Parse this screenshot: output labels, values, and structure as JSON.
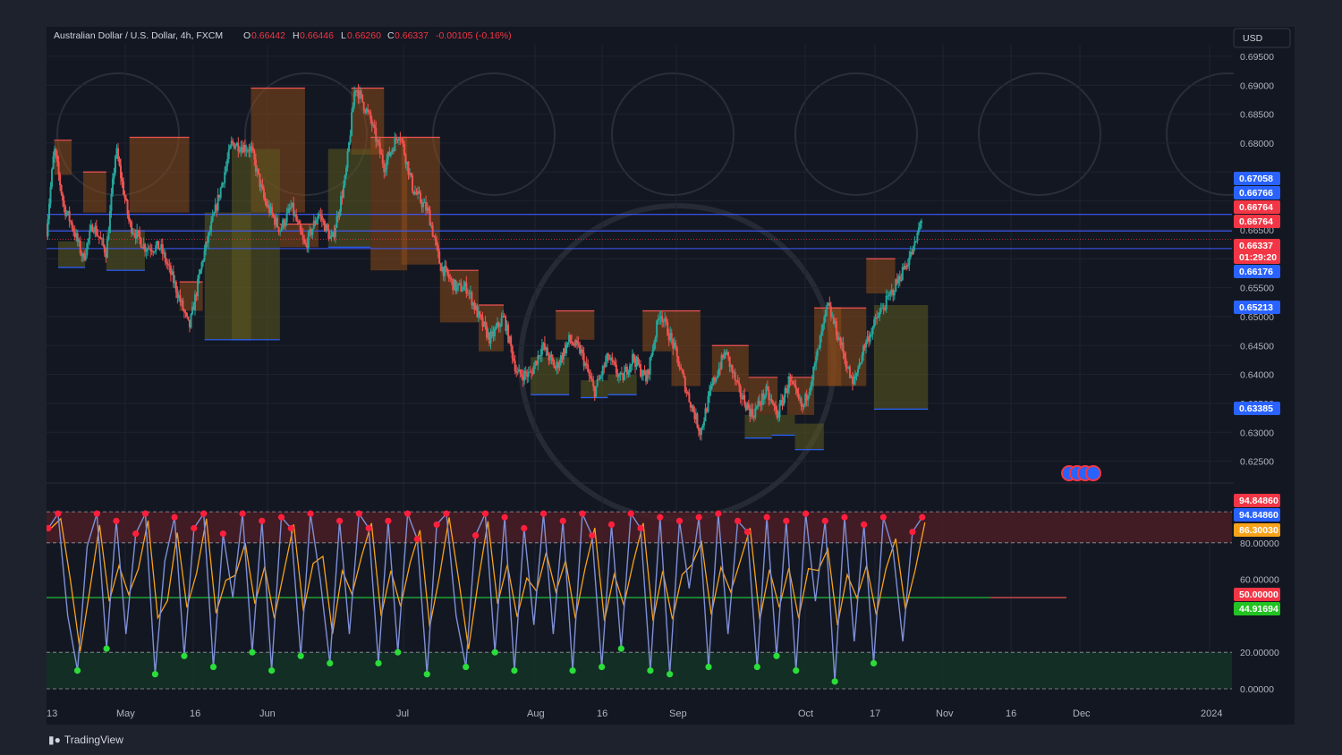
{
  "header": {
    "symbol": "Australian Dollar / U.S. Dollar, 4h, FXCM",
    "open_label": "O",
    "open": "0.66442",
    "high_label": "H",
    "high": "0.66446",
    "low_label": "L",
    "low": "0.66260",
    "close_label": "C",
    "close": "0.66337",
    "change": "-0.00105 (-0.16%)"
  },
  "currency": "USD",
  "branding": "TradingView",
  "colors": {
    "up": "#26a69a",
    "down": "#ef5350",
    "blue": "#2962ff",
    "orange": "#f7a21b",
    "oscillator": "#7e8fd6",
    "ob_zone": "#4a1d24",
    "os_zone": "#143326"
  },
  "chart_data": [
    {
      "type": "candlestick",
      "title": "Australian Dollar / U.S. Dollar, 4h, FXCM",
      "x_tick_labels": [
        "13",
        "May",
        "16",
        "Jun",
        "Jul",
        "Aug",
        "16",
        "Sep",
        "Oct",
        "17",
        "Nov",
        "16",
        "Dec",
        "2024"
      ],
      "y_tick_labels": [
        "0.69500",
        "0.69000",
        "0.68500",
        "0.68000",
        "0.66500",
        "0.65500",
        "0.65000",
        "0.64500",
        "0.64000",
        "0.63500",
        "0.63000",
        "0.62500"
      ],
      "ylim": [
        0.622,
        0.697
      ],
      "price_path": [
        [
          0.0,
          0.665
        ],
        [
          0.8,
          0.679
        ],
        [
          1.8,
          0.669
        ],
        [
          2.6,
          0.666
        ],
        [
          3.8,
          0.66
        ],
        [
          4.8,
          0.666
        ],
        [
          6.2,
          0.661
        ],
        [
          7.2,
          0.679
        ],
        [
          8.6,
          0.666
        ],
        [
          10.2,
          0.662
        ],
        [
          11.8,
          0.662
        ],
        [
          13.2,
          0.656
        ],
        [
          14.8,
          0.648
        ],
        [
          16.2,
          0.66
        ],
        [
          17.6,
          0.669
        ],
        [
          19.2,
          0.68
        ],
        [
          21.2,
          0.679
        ],
        [
          22.6,
          0.67
        ],
        [
          24.2,
          0.665
        ],
        [
          25.4,
          0.669
        ],
        [
          26.8,
          0.662
        ],
        [
          28.2,
          0.668
        ],
        [
          29.6,
          0.663
        ],
        [
          31.0,
          0.674
        ],
        [
          32.0,
          0.69
        ],
        [
          33.6,
          0.684
        ],
        [
          35.0,
          0.676
        ],
        [
          36.6,
          0.682
        ],
        [
          38.0,
          0.672
        ],
        [
          39.6,
          0.668
        ],
        [
          40.8,
          0.659
        ],
        [
          42.4,
          0.655
        ],
        [
          43.6,
          0.655
        ],
        [
          44.8,
          0.65
        ],
        [
          46.0,
          0.646
        ],
        [
          47.4,
          0.65
        ],
        [
          48.8,
          0.64
        ],
        [
          50.2,
          0.64
        ],
        [
          51.4,
          0.645
        ],
        [
          52.8,
          0.641
        ],
        [
          54.2,
          0.646
        ],
        [
          55.4,
          0.644
        ],
        [
          56.8,
          0.637
        ],
        [
          58.2,
          0.643
        ],
        [
          59.6,
          0.639
        ],
        [
          60.8,
          0.643
        ],
        [
          62.2,
          0.639
        ],
        [
          63.6,
          0.651
        ],
        [
          65.0,
          0.645
        ],
        [
          66.4,
          0.637
        ],
        [
          67.8,
          0.63
        ],
        [
          69.0,
          0.638
        ],
        [
          70.4,
          0.644
        ],
        [
          71.8,
          0.637
        ],
        [
          73.2,
          0.633
        ],
        [
          74.6,
          0.637
        ],
        [
          75.8,
          0.633
        ],
        [
          77.0,
          0.639
        ],
        [
          78.4,
          0.634
        ],
        [
          79.6,
          0.641
        ],
        [
          81.0,
          0.652
        ],
        [
          82.4,
          0.645
        ],
        [
          83.6,
          0.638
        ],
        [
          84.8,
          0.645
        ],
        [
          86.2,
          0.65
        ],
        [
          87.6,
          0.654
        ],
        [
          88.8,
          0.658
        ],
        [
          90.0,
          0.662
        ],
        [
          90.8,
          0.6676
        ]
      ],
      "supply_boxes": [
        {
          "x0": 0.8,
          "x1": 2.6,
          "top": 0.6805,
          "bottom": 0.6745
        },
        {
          "x0": 3.8,
          "x1": 6.2,
          "top": 0.675,
          "bottom": 0.668
        },
        {
          "x0": 8.6,
          "x1": 14.8,
          "top": 0.681,
          "bottom": 0.668
        },
        {
          "x0": 13.8,
          "x1": 16.2,
          "top": 0.656,
          "bottom": 0.651
        },
        {
          "x0": 21.2,
          "x1": 26.8,
          "top": 0.6895,
          "bottom": 0.668
        },
        {
          "x0": 24.2,
          "x1": 28.2,
          "top": 0.666,
          "bottom": 0.662
        },
        {
          "x0": 31.6,
          "x1": 35.0,
          "top": 0.6895,
          "bottom": 0.678
        },
        {
          "x0": 33.6,
          "x1": 37.4,
          "top": 0.681,
          "bottom": 0.658
        },
        {
          "x0": 36.8,
          "x1": 40.8,
          "top": 0.681,
          "bottom": 0.659
        },
        {
          "x0": 40.8,
          "x1": 44.8,
          "top": 0.658,
          "bottom": 0.649
        },
        {
          "x0": 44.8,
          "x1": 47.4,
          "top": 0.652,
          "bottom": 0.644
        },
        {
          "x0": 52.8,
          "x1": 56.8,
          "top": 0.651,
          "bottom": 0.646
        },
        {
          "x0": 61.8,
          "x1": 64.8,
          "top": 0.651,
          "bottom": 0.644
        },
        {
          "x0": 64.8,
          "x1": 67.8,
          "top": 0.651,
          "bottom": 0.638
        },
        {
          "x0": 69.0,
          "x1": 72.8,
          "top": 0.645,
          "bottom": 0.637
        },
        {
          "x0": 72.8,
          "x1": 75.8,
          "top": 0.6395,
          "bottom": 0.633
        },
        {
          "x0": 76.8,
          "x1": 79.6,
          "top": 0.6395,
          "bottom": 0.633
        },
        {
          "x0": 79.6,
          "x1": 82.4,
          "top": 0.6515,
          "bottom": 0.638
        },
        {
          "x0": 81.0,
          "x1": 85.0,
          "top": 0.6515,
          "bottom": 0.638
        },
        {
          "x0": 85.0,
          "x1": 88.0,
          "top": 0.66,
          "bottom": 0.654
        }
      ],
      "demand_boxes": [
        {
          "x0": 1.2,
          "x1": 4.0,
          "top": 0.663,
          "bottom": 0.6585
        },
        {
          "x0": 6.2,
          "x1": 10.2,
          "top": 0.665,
          "bottom": 0.658
        },
        {
          "x0": 16.4,
          "x1": 21.2,
          "top": 0.668,
          "bottom": 0.646
        },
        {
          "x0": 19.2,
          "x1": 24.2,
          "top": 0.679,
          "bottom": 0.646
        },
        {
          "x0": 29.2,
          "x1": 33.6,
          "top": 0.679,
          "bottom": 0.662
        },
        {
          "x0": 50.2,
          "x1": 54.2,
          "top": 0.643,
          "bottom": 0.6365
        },
        {
          "x0": 55.4,
          "x1": 58.2,
          "top": 0.639,
          "bottom": 0.636
        },
        {
          "x0": 58.2,
          "x1": 61.2,
          "top": 0.64,
          "bottom": 0.6365
        },
        {
          "x0": 72.4,
          "x1": 75.2,
          "top": 0.633,
          "bottom": 0.629
        },
        {
          "x0": 75.2,
          "x1": 77.6,
          "top": 0.633,
          "bottom": 0.6295
        },
        {
          "x0": 77.6,
          "x1": 80.6,
          "top": 0.6315,
          "bottom": 0.627
        },
        {
          "x0": 85.8,
          "x1": 91.4,
          "top": 0.652,
          "bottom": 0.634
        }
      ],
      "horizontal_levels": [
        0.66766,
        0.6648,
        0.66176
      ],
      "price_labels": [
        {
          "text": "0.67058",
          "color": "#2962ff"
        },
        {
          "text": "0.66766",
          "color": "#2962ff"
        },
        {
          "text": "0.66764",
          "color": "#f23645"
        },
        {
          "text": "0.66764",
          "color": "#f23645"
        },
        {
          "text": "0.66337",
          "color": "#f23645"
        },
        {
          "text": "01:29:20",
          "color": "#f23645"
        },
        {
          "text": "0.66176",
          "color": "#2962ff"
        },
        {
          "text": "0.65213",
          "color": "#2962ff"
        },
        {
          "text": "0.63385",
          "color": "#2962ff"
        }
      ]
    },
    {
      "type": "line",
      "series": [
        {
          "values": [
            88,
            96,
            40,
            10,
            78,
            96,
            22,
            92,
            30,
            85,
            96,
            8,
            70,
            94,
            18,
            88,
            96,
            12,
            85,
            50,
            96,
            20,
            92,
            10,
            94,
            88,
            18,
            96,
            60,
            14,
            92,
            30,
            96,
            88,
            14,
            92,
            20,
            96,
            82,
            8,
            90,
            96,
            40,
            12,
            84,
            96,
            20,
            94,
            10,
            88,
            35,
            96,
            30,
            92,
            10,
            96,
            84,
            12,
            90,
            22,
            96,
            88,
            10,
            94,
            8,
            92,
            55,
            94,
            12,
            96,
            30,
            92,
            86,
            12,
            94,
            18,
            92,
            10,
            96,
            48,
            92,
            4,
            94,
            26,
            90,
            14,
            94,
            76,
            26,
            86,
            94
          ]
        }
      ],
      "y_tick_labels": [
        "80.00000",
        "60.00000",
        "20.00000",
        "0.00000"
      ],
      "ylim": [
        0,
        100
      ],
      "overbought": 80,
      "oversold": 20,
      "midline": 50,
      "value_labels": [
        {
          "text": "94.84860",
          "color": "#f23645"
        },
        {
          "text": "94.84860",
          "color": "#2962ff"
        },
        {
          "text": "86.30030",
          "color": "#f7a21b"
        },
        {
          "text": "50.00000",
          "color": "#f23645"
        },
        {
          "text": "44.91694",
          "color": "#22c322"
        }
      ]
    }
  ]
}
